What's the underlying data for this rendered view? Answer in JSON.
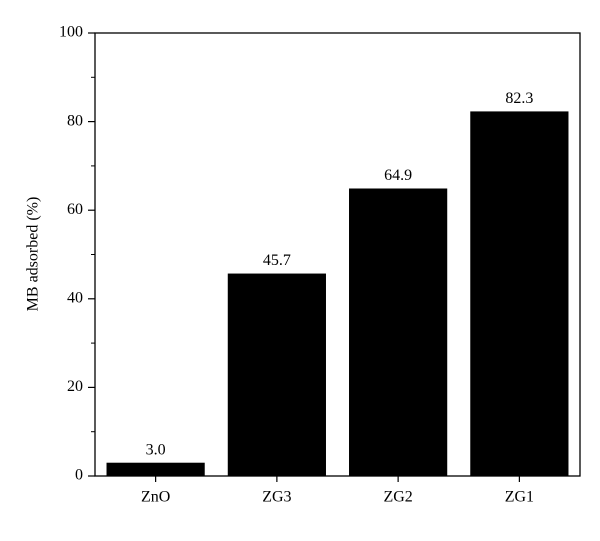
{
  "chart_data": {
    "type": "bar",
    "y_label": "MB adsorbed (%)",
    "categories": [
      "ZnO",
      "ZG3",
      "ZG2",
      "ZG1"
    ],
    "values": [
      3.0,
      45.7,
      64.9,
      82.3
    ],
    "value_labels": [
      "3.0",
      "45.7",
      "64.9",
      "82.3"
    ],
    "color": "#000000",
    "ylim": [
      0,
      100
    ],
    "yticks": [
      0,
      20,
      40,
      60,
      80,
      100
    ],
    "minor_yticks": [
      10,
      30,
      50,
      70,
      90
    ],
    "grid": false
  }
}
